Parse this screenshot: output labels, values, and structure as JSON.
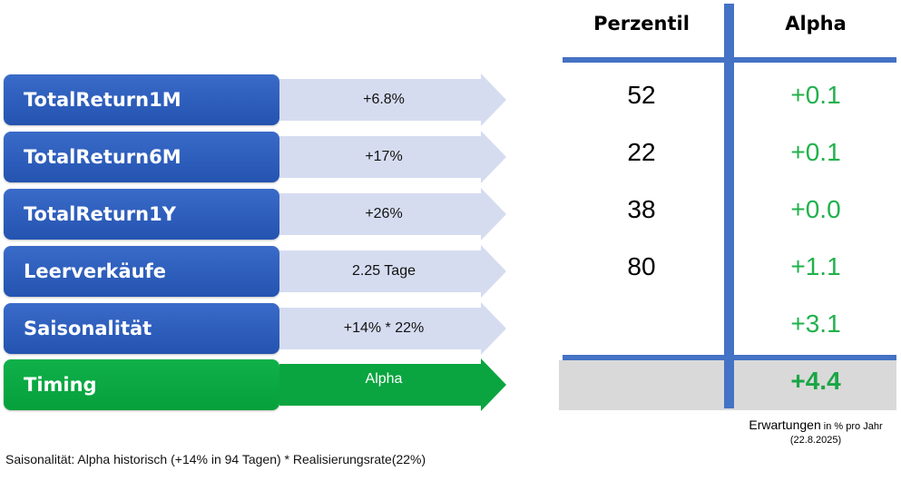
{
  "factors": [
    {
      "name": "TotalReturn1M",
      "value": "+6.8%",
      "percentile": "52",
      "alpha": "+0.1"
    },
    {
      "name": "TotalReturn6M",
      "value": "+17%",
      "percentile": "22",
      "alpha": "+0.1"
    },
    {
      "name": "TotalReturn1Y",
      "value": "+26%",
      "percentile": "38",
      "alpha": "+0.0"
    },
    {
      "name": "Leerverkäufe",
      "value": "2.25 Tage",
      "percentile": "80",
      "alpha": "+1.1"
    },
    {
      "name": "Saisonalität",
      "value": "+14% * 22%",
      "percentile": "",
      "alpha": "+3.1"
    }
  ],
  "timing": {
    "name": "Timing",
    "value": "Alpha",
    "alpha": "+4.4"
  },
  "columns": {
    "percentile": "Perzentil",
    "alpha": "Alpha"
  },
  "note": {
    "line1_main": "Erwartungen",
    "line1_small": " in % pro Jahr",
    "line2": "(22.8.2025)"
  },
  "footnote": "Saisonalität: Alpha historisch (+14% in 94 Tagen) * Realisierungsrate(22%)",
  "colors": {
    "blue_box": "#2e5fbf",
    "green_box": "#0aa540",
    "arrow_light": "#d6dcf0",
    "arrow_green": "#0aa540",
    "line_blue": "#4472c4",
    "alpha_green": "#22b14c",
    "total_bg": "#d9d9d9"
  }
}
